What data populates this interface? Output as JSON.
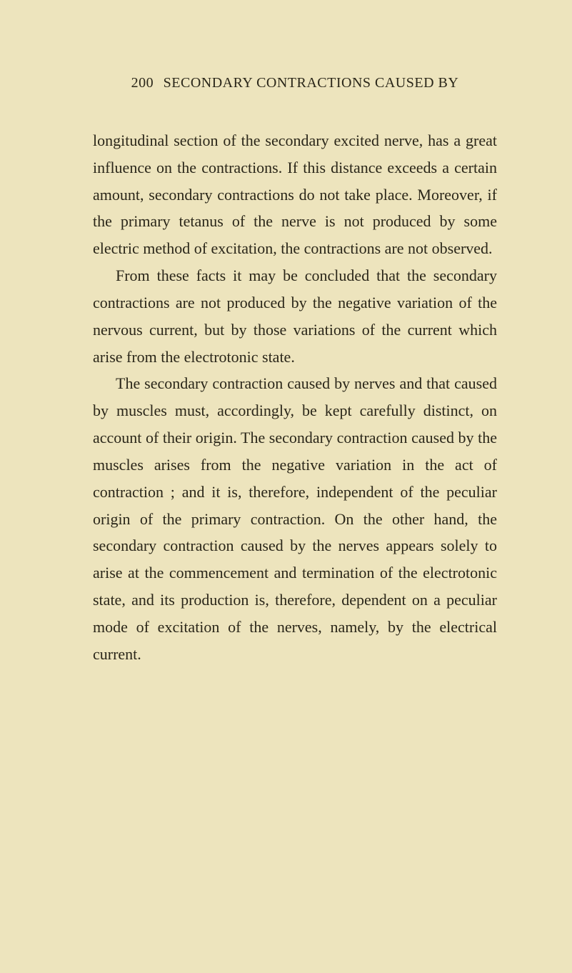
{
  "page": {
    "number": "200",
    "running_head": "SECONDARY CONTRACTIONS CAUSED BY"
  },
  "colors": {
    "background": "#ede4bd",
    "text": "#2a2619"
  },
  "typography": {
    "header_fontsize": 20,
    "body_fontsize": 22,
    "line_height": 1.72,
    "font_family": "Georgia, 'Times New Roman', serif"
  },
  "paragraphs": [
    {
      "indent": false,
      "text": "longitudinal section of the secondary excited nerve, has a great influence on the contractions. If this distance exceeds a certain amount, secondary contractions do not take place. Moreover, if the primary tetanus of the nerve is not produced by some electric method of excitation, the contractions are not observed."
    },
    {
      "indent": true,
      "text": "From these facts it may be concluded that the secondary contractions are not produced by the negative variation of the nervous current, but by those variations of the current which arise from the electrotonic state."
    },
    {
      "indent": true,
      "text": "The secondary contraction caused by nerves and that caused by muscles must, accordingly, be kept carefully distinct, on account of their origin. The secondary contraction caused by the muscles arises from the negative variation in the act of contraction ; and it is, therefore, independent of the peculiar origin of the primary contraction. On the other hand, the secondary contraction caused by the nerves appears solely to arise at the commencement and termination of the electrotonic state, and its production is, therefore, dependent on a peculiar mode of excitation of the nerves, namely, by the electrical current."
    }
  ]
}
